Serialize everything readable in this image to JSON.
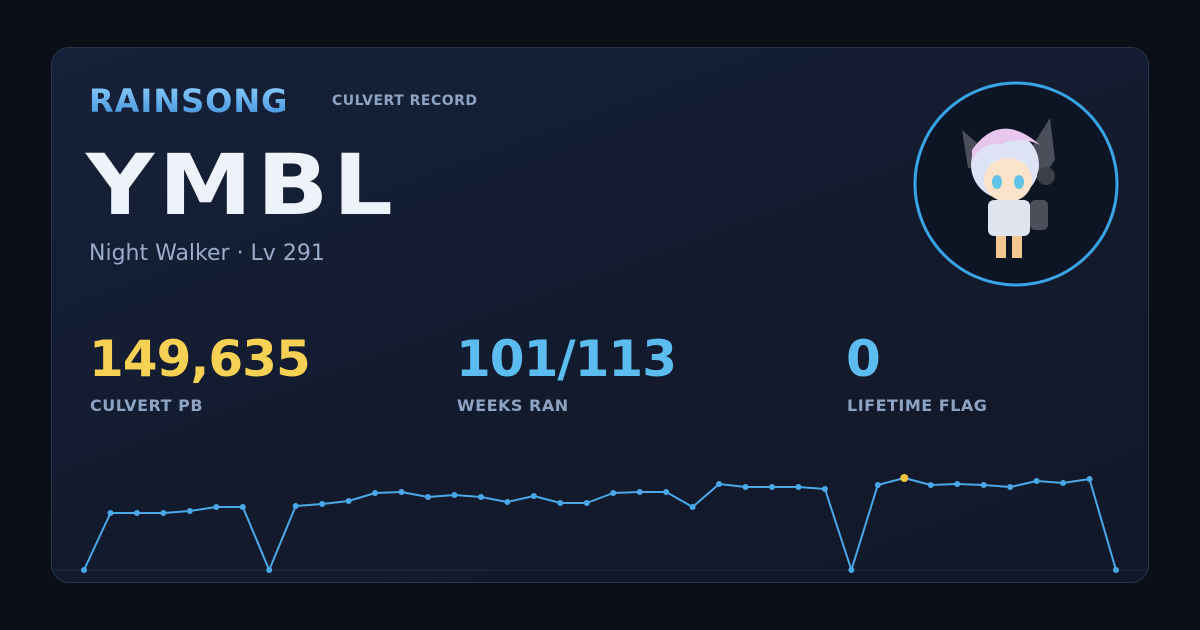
{
  "header": {
    "brand": "RAINSONG",
    "tag": "CULVERT RECORD"
  },
  "player": {
    "name": "YMBL",
    "class_level": "Night Walker · Lv 291"
  },
  "stats": [
    {
      "value": "149,635",
      "label": "CULVERT PB",
      "color": "#f7d154"
    },
    {
      "value": "101/113",
      "label": "WEEKS RAN",
      "color": "#5cbcf0"
    },
    {
      "value": "0",
      "label": "LIFETIME FLAG",
      "color": "#5cbcf0"
    }
  ],
  "chart_data": {
    "type": "line",
    "values": [
      0,
      92710,
      92710,
      92710,
      95960,
      102470,
      102470,
      0,
      104100,
      107350,
      112230,
      125240,
      126870,
      118740,
      121990,
      118740,
      110600,
      120360,
      108980,
      108980,
      125240,
      126870,
      126870,
      102470,
      139880,
      135000,
      135000,
      135000,
      131750,
      0,
      138250,
      149635,
      138250,
      139880,
      138250,
      135000,
      144760,
      141510,
      148010,
      0
    ],
    "color": "#4aa8e8",
    "highlight_color": "#f5c542"
  }
}
